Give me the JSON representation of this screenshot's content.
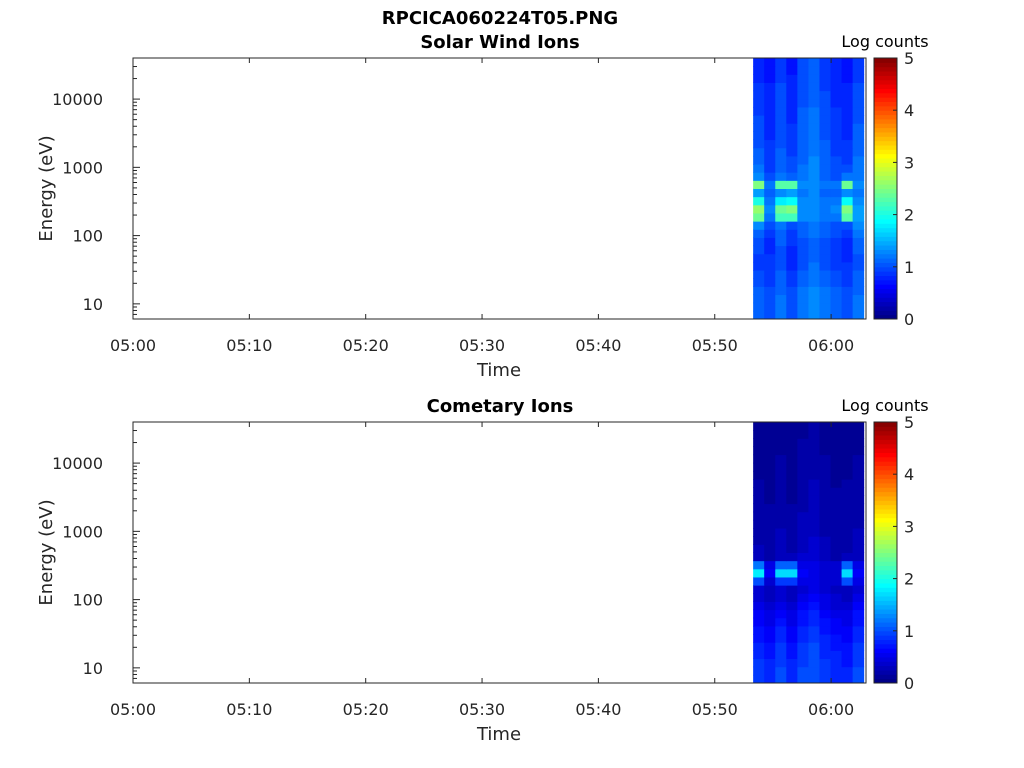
{
  "figure_title": "RPCICA060224T05.PNG",
  "chart_data": [
    {
      "type": "heatmap",
      "title": "Solar Wind Ions",
      "xlabel": "Time",
      "ylabel": "Energy (eV)",
      "x_ticks": [
        "05:00",
        "05:10",
        "05:20",
        "05:30",
        "05:40",
        "05:50",
        "06:00"
      ],
      "x_range_minutes": [
        0,
        63
      ],
      "y_scale": "log",
      "y_ticks": [
        "10",
        "100",
        "1000",
        "10000"
      ],
      "y_range": [
        6,
        40000
      ],
      "colorbar": {
        "label": "Log counts",
        "ticks": [
          "0",
          "1",
          "2",
          "3",
          "4",
          "5"
        ],
        "range": [
          0,
          5
        ],
        "colormap": "jet"
      },
      "data_start_minute": 53.3,
      "time_columns": 10,
      "data_end_minute": 62.8,
      "energy_rows": 32,
      "values_note_rows_low_to_high_energy": true,
      "values": [
        [
          1.1,
          1.0,
          1.2,
          1.0,
          1.2,
          1.3,
          1.2,
          1.1,
          1.0,
          1.2
        ],
        [
          1.1,
          1.0,
          1.2,
          1.0,
          1.2,
          1.3,
          1.2,
          1.1,
          1.0,
          1.2
        ],
        [
          1.1,
          1.0,
          1.2,
          1.0,
          1.2,
          1.3,
          1.2,
          1.1,
          1.0,
          1.2
        ],
        [
          1.1,
          1.0,
          1.1,
          1.0,
          1.2,
          1.3,
          1.2,
          1.1,
          1.0,
          1.1
        ],
        [
          1.0,
          0.9,
          1.1,
          0.9,
          1.1,
          1.2,
          1.1,
          1.0,
          0.9,
          1.1
        ],
        [
          1.0,
          0.9,
          1.1,
          0.9,
          1.1,
          1.2,
          1.1,
          1.0,
          0.9,
          1.1
        ],
        [
          0.9,
          0.9,
          1.0,
          0.8,
          1.0,
          1.2,
          1.0,
          0.9,
          0.9,
          1.0
        ],
        [
          0.9,
          0.9,
          1.0,
          0.8,
          1.0,
          1.1,
          1.0,
          0.9,
          0.8,
          1.0
        ],
        [
          1.0,
          0.8,
          1.0,
          0.8,
          1.0,
          1.1,
          1.0,
          0.9,
          0.8,
          1.1
        ],
        [
          1.0,
          0.8,
          1.1,
          0.9,
          1.0,
          1.1,
          1.0,
          0.9,
          0.8,
          1.1
        ],
        [
          1.1,
          0.9,
          1.1,
          0.9,
          1.1,
          1.2,
          1.1,
          1.0,
          0.9,
          1.2
        ],
        [
          1.3,
          1.0,
          1.2,
          1.0,
          1.1,
          1.2,
          1.1,
          1.0,
          1.0,
          1.3
        ],
        [
          2.4,
          1.2,
          2.2,
          2.2,
          1.3,
          1.3,
          1.2,
          1.2,
          2.3,
          1.4
        ],
        [
          2.6,
          1.3,
          2.4,
          2.5,
          1.3,
          1.3,
          1.2,
          1.3,
          2.5,
          1.4
        ],
        [
          2.0,
          1.2,
          1.8,
          1.9,
          1.3,
          1.3,
          1.2,
          1.2,
          1.9,
          1.3
        ],
        [
          1.4,
          1.1,
          1.3,
          1.4,
          1.2,
          1.3,
          1.1,
          1.1,
          1.3,
          1.2
        ],
        [
          2.5,
          1.2,
          2.3,
          2.3,
          1.3,
          1.3,
          1.2,
          1.2,
          2.4,
          1.3
        ],
        [
          1.3,
          1.0,
          1.2,
          1.1,
          1.2,
          1.3,
          1.1,
          1.0,
          1.2,
          1.2
        ],
        [
          1.2,
          0.9,
          1.1,
          1.0,
          1.2,
          1.3,
          1.1,
          1.0,
          1.0,
          1.2
        ],
        [
          1.1,
          0.9,
          1.1,
          1.0,
          1.1,
          1.3,
          1.1,
          1.0,
          0.9,
          1.2
        ],
        [
          1.1,
          0.9,
          1.1,
          0.9,
          1.1,
          1.2,
          1.1,
          0.9,
          0.9,
          1.1
        ],
        [
          1.0,
          0.9,
          1.0,
          0.9,
          1.1,
          1.2,
          1.1,
          0.9,
          0.9,
          1.1
        ],
        [
          1.0,
          0.8,
          1.0,
          0.9,
          1.1,
          1.2,
          1.0,
          0.9,
          0.8,
          1.1
        ],
        [
          1.0,
          0.8,
          1.0,
          0.9,
          1.1,
          1.2,
          1.0,
          0.9,
          0.8,
          1.1
        ],
        [
          1.0,
          0.8,
          1.0,
          0.8,
          1.1,
          1.2,
          1.0,
          0.9,
          0.8,
          1.0
        ],
        [
          0.9,
          0.8,
          1.0,
          0.8,
          1.1,
          1.2,
          1.0,
          0.9,
          0.8,
          1.0
        ],
        [
          0.9,
          0.8,
          1.0,
          0.8,
          1.0,
          1.1,
          1.0,
          0.8,
          0.8,
          1.0
        ],
        [
          0.9,
          0.8,
          1.0,
          0.8,
          1.0,
          1.1,
          1.0,
          0.8,
          0.8,
          1.0
        ],
        [
          0.9,
          0.8,
          1.0,
          0.8,
          1.0,
          1.1,
          0.9,
          0.8,
          0.8,
          1.0
        ],
        [
          0.8,
          0.7,
          0.9,
          0.8,
          1.0,
          1.1,
          0.9,
          0.8,
          0.7,
          0.9
        ],
        [
          0.8,
          0.7,
          0.9,
          0.7,
          1.0,
          1.1,
          0.9,
          0.8,
          0.7,
          0.9
        ],
        [
          0.8,
          0.7,
          0.9,
          0.7,
          1.0,
          1.1,
          0.9,
          0.8,
          0.7,
          0.9
        ]
      ]
    },
    {
      "type": "heatmap",
      "title": "Cometary Ions",
      "xlabel": "Time",
      "ylabel": "Energy (eV)",
      "x_ticks": [
        "05:00",
        "05:10",
        "05:20",
        "05:30",
        "05:40",
        "05:50",
        "06:00"
      ],
      "x_range_minutes": [
        0,
        63
      ],
      "y_scale": "log",
      "y_ticks": [
        "10",
        "100",
        "1000",
        "10000"
      ],
      "y_range": [
        6,
        40000
      ],
      "colorbar": {
        "label": "Log counts",
        "ticks": [
          "0",
          "1",
          "2",
          "3",
          "4",
          "5"
        ],
        "range": [
          0,
          5
        ],
        "colormap": "jet"
      },
      "data_start_minute": 53.3,
      "time_columns": 10,
      "data_end_minute": 62.8,
      "energy_rows": 32,
      "values": [
        [
          0.9,
          0.8,
          1.0,
          0.8,
          1.0,
          1.0,
          0.9,
          0.8,
          0.8,
          1.0
        ],
        [
          0.9,
          0.8,
          1.0,
          0.8,
          1.0,
          1.0,
          0.9,
          0.8,
          0.8,
          1.0
        ],
        [
          0.9,
          0.8,
          0.9,
          0.8,
          0.9,
          1.0,
          0.9,
          0.8,
          0.7,
          0.9
        ],
        [
          0.8,
          0.7,
          0.9,
          0.7,
          0.9,
          1.0,
          0.8,
          0.8,
          0.7,
          0.9
        ],
        [
          0.8,
          0.7,
          0.9,
          0.7,
          0.9,
          1.0,
          0.8,
          0.7,
          0.7,
          0.9
        ],
        [
          0.7,
          0.6,
          0.8,
          0.6,
          0.8,
          0.9,
          0.8,
          0.7,
          0.6,
          0.8
        ],
        [
          0.7,
          0.6,
          0.8,
          0.6,
          0.8,
          0.9,
          0.7,
          0.6,
          0.6,
          0.8
        ],
        [
          0.6,
          0.5,
          0.7,
          0.5,
          0.7,
          0.8,
          0.7,
          0.6,
          0.5,
          0.7
        ],
        [
          0.6,
          0.5,
          0.6,
          0.5,
          0.7,
          0.8,
          0.6,
          0.5,
          0.5,
          0.7
        ],
        [
          0.5,
          0.4,
          0.5,
          0.4,
          0.6,
          0.7,
          0.5,
          0.4,
          0.4,
          0.6
        ],
        [
          0.4,
          0.3,
          0.4,
          0.3,
          0.5,
          0.6,
          0.5,
          0.4,
          0.3,
          0.5
        ],
        [
          0.4,
          0.3,
          0.4,
          0.3,
          0.4,
          0.5,
          0.4,
          0.3,
          0.3,
          0.4
        ],
        [
          1.0,
          0.4,
          0.9,
          0.9,
          0.5,
          0.5,
          0.4,
          0.4,
          1.0,
          0.5
        ],
        [
          1.8,
          0.6,
          1.7,
          1.7,
          0.6,
          0.5,
          0.4,
          0.4,
          1.7,
          0.6
        ],
        [
          1.2,
          0.5,
          1.1,
          1.1,
          0.5,
          0.5,
          0.4,
          0.4,
          1.1,
          0.5
        ],
        [
          0.3,
          0.2,
          0.3,
          0.3,
          0.4,
          0.4,
          0.3,
          0.2,
          0.3,
          0.3
        ],
        [
          0.3,
          0.2,
          0.3,
          0.2,
          0.3,
          0.4,
          0.3,
          0.2,
          0.2,
          0.3
        ],
        [
          0.2,
          0.2,
          0.3,
          0.2,
          0.3,
          0.4,
          0.3,
          0.2,
          0.2,
          0.3
        ],
        [
          0.2,
          0.2,
          0.3,
          0.2,
          0.3,
          0.3,
          0.2,
          0.2,
          0.2,
          0.3
        ],
        [
          0.2,
          0.2,
          0.2,
          0.2,
          0.3,
          0.3,
          0.2,
          0.2,
          0.2,
          0.2
        ],
        [
          0.2,
          0.2,
          0.2,
          0.2,
          0.3,
          0.3,
          0.2,
          0.2,
          0.2,
          0.2
        ],
        [
          0.2,
          0.2,
          0.2,
          0.2,
          0.2,
          0.3,
          0.2,
          0.2,
          0.2,
          0.2
        ],
        [
          0.2,
          0.1,
          0.2,
          0.1,
          0.2,
          0.3,
          0.2,
          0.2,
          0.2,
          0.2
        ],
        [
          0.2,
          0.1,
          0.2,
          0.1,
          0.2,
          0.3,
          0.2,
          0.2,
          0.2,
          0.2
        ],
        [
          0.2,
          0.1,
          0.2,
          0.1,
          0.2,
          0.3,
          0.2,
          0.1,
          0.2,
          0.2
        ],
        [
          0.1,
          0.1,
          0.2,
          0.1,
          0.2,
          0.2,
          0.2,
          0.1,
          0.1,
          0.2
        ],
        [
          0.1,
          0.1,
          0.2,
          0.1,
          0.2,
          0.2,
          0.2,
          0.1,
          0.1,
          0.2
        ],
        [
          0.1,
          0.1,
          0.2,
          0.1,
          0.2,
          0.2,
          0.2,
          0.1,
          0.1,
          0.2
        ],
        [
          0.1,
          0.1,
          0.1,
          0.1,
          0.2,
          0.2,
          0.1,
          0.1,
          0.1,
          0.1
        ],
        [
          0.1,
          0.1,
          0.1,
          0.1,
          0.2,
          0.2,
          0.1,
          0.1,
          0.1,
          0.1
        ],
        [
          0.1,
          0.1,
          0.1,
          0.1,
          0.1,
          0.2,
          0.1,
          0.1,
          0.1,
          0.1
        ],
        [
          0.1,
          0.1,
          0.1,
          0.1,
          0.1,
          0.2,
          0.1,
          0.1,
          0.1,
          0.1
        ]
      ]
    }
  ]
}
